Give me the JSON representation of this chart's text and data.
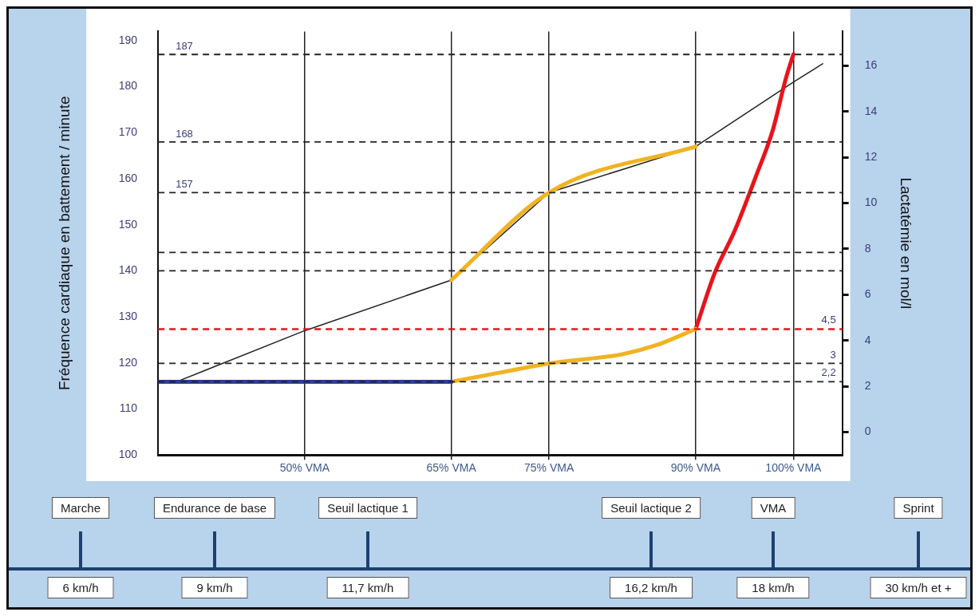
{
  "chart_data": {
    "type": "line",
    "xlabel": null,
    "ylabel": "Fréquence cardiaque en battement / minute",
    "y2label": "Lactatémie en mol/l",
    "xlim": [
      35,
      105
    ],
    "xticks": [
      {
        "value": 50,
        "label": "50% VMA"
      },
      {
        "value": 65,
        "label": "65% VMA"
      },
      {
        "value": 75,
        "label": "75% VMA"
      },
      {
        "value": 90,
        "label": "90% VMA"
      },
      {
        "value": 100,
        "label": "100% VMA"
      }
    ],
    "ylim": [
      100,
      192
    ],
    "yticks": [
      100,
      110,
      120,
      130,
      140,
      150,
      160,
      170,
      180,
      190
    ],
    "y2lim": [
      -1,
      17.5
    ],
    "y2ticks": [
      0,
      2,
      4,
      6,
      8,
      10,
      12,
      14,
      16
    ],
    "grid": "x",
    "legend": false,
    "marker": "none",
    "series": [
      {
        "color": "#222222",
        "x": [
          37,
          50,
          65,
          75,
          90,
          100,
          103
        ],
        "values": [
          116,
          127,
          138,
          157,
          167,
          181,
          185
        ]
      },
      {
        "color": "#f0b323",
        "x": [
          65,
          75,
          90
        ],
        "values": [
          138,
          157,
          167
        ]
      },
      {
        "color": "#2e3f93",
        "axis": "y2",
        "x": [
          35,
          65
        ],
        "values": [
          2.2,
          2.2
        ]
      },
      {
        "color": "#f0b323",
        "axis": "y2",
        "x": [
          65,
          70,
          75,
          82.5,
          86,
          90
        ],
        "values": [
          2.2,
          2.6,
          3,
          3.4,
          3.8,
          4.5
        ]
      },
      {
        "color": "#e8141b",
        "axis": "y2",
        "x": [
          90,
          92,
          94,
          96.1,
          97.9,
          99.2,
          100
        ],
        "values": [
          4.5,
          7,
          8.8,
          11.1,
          13.2,
          15.4,
          16.5
        ]
      }
    ],
    "ref_lines": [
      {
        "axis": "y",
        "value": 187,
        "label": "187",
        "color": "#222222",
        "line_style": "dashed"
      },
      {
        "axis": "y",
        "value": 168,
        "label": "168",
        "color": "#222222",
        "line_style": "dashed"
      },
      {
        "axis": "y",
        "value": 157,
        "label": "157",
        "color": "#222222",
        "line_style": "dashed"
      },
      {
        "axis": "y",
        "value": 144,
        "label": null,
        "color": "#222222",
        "line_style": "dashed"
      },
      {
        "axis": "y",
        "value": 140,
        "label": null,
        "color": "#222222",
        "line_style": "dashed"
      },
      {
        "axis": "y2",
        "value": 4.5,
        "label": "4,5",
        "color": "#e8141b",
        "line_style": "dashed"
      },
      {
        "axis": "y2",
        "value": 3,
        "label": "3",
        "color": "#222222",
        "line_style": "dashed"
      },
      {
        "axis": "y2",
        "value": 2.2,
        "label": "2,2",
        "color": "#222222",
        "line_style": "dashed"
      }
    ],
    "annotations": [
      "Marche",
      "Endurance de base",
      "Seuil lactique 1",
      "Seuil lactique 2",
      "VMA",
      "Sprint",
      "6 km/h",
      "9 km/h",
      "11,7 km/h",
      "16,2 km/h",
      "18 km/h",
      "30 km/h et +"
    ]
  }
}
